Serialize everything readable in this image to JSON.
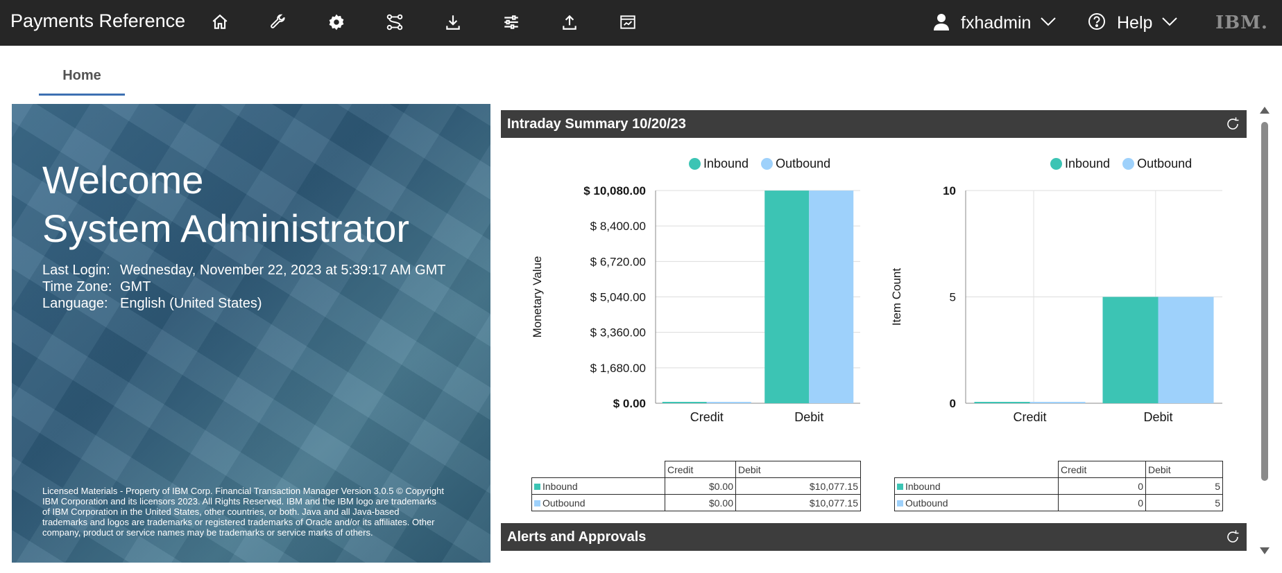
{
  "header": {
    "app_title": "Payments Reference",
    "icons": [
      "home-icon",
      "wrench-icon",
      "gear-icon",
      "workflow-icon",
      "download-icon",
      "sliders-icon",
      "upload-icon",
      "chart-window-icon"
    ],
    "user": "fxhadmin",
    "help": "Help",
    "logo": "IBM."
  },
  "tabs": {
    "home": "Home"
  },
  "welcome": {
    "line1": "Welcome",
    "line2": "System Administrator",
    "last_login_label": "Last Login:",
    "last_login_value": "Wednesday, November 22, 2023 at 5:39:17 AM GMT",
    "time_zone_label": "Time Zone:",
    "time_zone_value": "GMT",
    "language_label": "Language:",
    "language_value": "English (United States)",
    "legal": "Licensed Materials - Property of IBM Corp. Financial Transaction Manager Version 3.0.5 © Copyright IBM Corporation and its licensors 2023. All Rights Reserved. IBM and the IBM logo are trademarks of IBM Corporation in the United States, other countries, or both. Java and all Java-based trademarks and logos are trademarks or registered trademarks of Oracle and/or its affiliates. Other company, product or service names may be trademarks or service marks of others."
  },
  "intraday": {
    "title": "Intraday Summary 10/20/23"
  },
  "alerts": {
    "title": "Alerts and Approvals"
  },
  "colors": {
    "inbound": "#3cc4b4",
    "outbound": "#9ed1fb",
    "header": "#262626",
    "panel_header": "#3d3d3d"
  },
  "chart_data": [
    {
      "type": "bar",
      "categories": [
        "Credit",
        "Debit"
      ],
      "ylabel": "Monetary Value",
      "ylim": [
        0,
        10080
      ],
      "yticks": [
        "$ 0.00",
        "$ 1,680.00",
        "$ 3,360.00",
        "$ 5,040.00",
        "$ 6,720.00",
        "$ 8,400.00",
        "$ 10,080.00"
      ],
      "ytick_values": [
        0,
        1680,
        3360,
        5040,
        6720,
        8400,
        10080
      ],
      "legend": "top",
      "series": [
        {
          "name": "Inbound",
          "values": [
            0,
            10077.15
          ]
        },
        {
          "name": "Outbound",
          "values": [
            0,
            10077.15
          ]
        }
      ],
      "table": {
        "headers": [
          "Credit",
          "Debit"
        ],
        "rows": [
          {
            "label": "Inbound",
            "values": [
              "$0.00",
              "$10,077.15"
            ]
          },
          {
            "label": "Outbound",
            "values": [
              "$0.00",
              "$10,077.15"
            ]
          }
        ]
      }
    },
    {
      "type": "bar",
      "categories": [
        "Credit",
        "Debit"
      ],
      "ylabel": "Item Count",
      "ylim": [
        0,
        10
      ],
      "yticks": [
        "0",
        "5",
        "10"
      ],
      "ytick_values": [
        0,
        5,
        10
      ],
      "legend": "top",
      "series": [
        {
          "name": "Inbound",
          "values": [
            0,
            5
          ]
        },
        {
          "name": "Outbound",
          "values": [
            0,
            5
          ]
        }
      ],
      "table": {
        "headers": [
          "Credit",
          "Debit"
        ],
        "rows": [
          {
            "label": "Inbound",
            "values": [
              "0",
              "5"
            ]
          },
          {
            "label": "Outbound",
            "values": [
              "0",
              "5"
            ]
          }
        ]
      }
    }
  ]
}
